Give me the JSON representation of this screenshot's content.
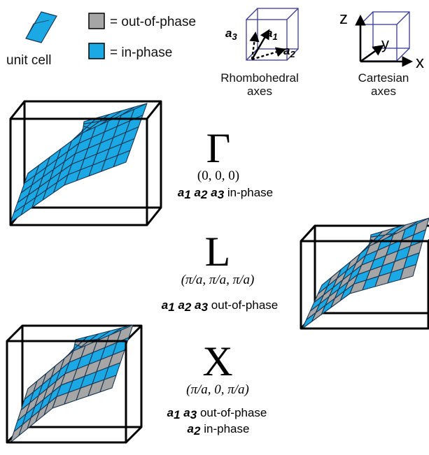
{
  "colors": {
    "in_phase": "#1ba9e6",
    "out_of_phase": "#a6a6a6",
    "grid_line": "#1a3550",
    "frame": "#000000",
    "rhombo_box": "#3a3a99"
  },
  "legend": {
    "unit_cell_label": "unit cell",
    "out_of_phase_label": "= out-of-phase",
    "in_phase_label": "= in-phase"
  },
  "axes": {
    "rhombohedral": {
      "caption_line1": "Rhombohedral",
      "caption_line2": "axes",
      "vec1": {
        "sym": "a",
        "sub": "1"
      },
      "vec2": {
        "sym": "a",
        "sub": "2"
      },
      "vec3": {
        "sym": "a",
        "sub": "3"
      }
    },
    "cartesian": {
      "caption_line1": "Cartesian",
      "caption_line2": "axes",
      "x_label": "x",
      "y_label": "y",
      "z_label": "z"
    }
  },
  "panels": [
    {
      "id": "gamma",
      "symbol": "Γ",
      "coords": "(0, 0, 0)",
      "lines": [
        {
          "vectors": [
            "1",
            "2",
            "3"
          ],
          "text": "in-phase"
        }
      ],
      "pattern": "all"
    },
    {
      "id": "L",
      "symbol": "L",
      "coords": "(π/a, π/a, π/a)",
      "lines": [
        {
          "vectors": [
            "1",
            "2",
            "3"
          ],
          "text": "out-of-phase"
        }
      ],
      "pattern": "checker"
    },
    {
      "id": "X",
      "symbol": "X",
      "coords": "(π/a, 0, π/a)",
      "lines": [
        {
          "vectors": [
            "1",
            "3"
          ],
          "text": "out-of-phase"
        },
        {
          "vectors": [
            "2"
          ],
          "text": "in-phase"
        }
      ],
      "pattern": "stripes"
    }
  ]
}
